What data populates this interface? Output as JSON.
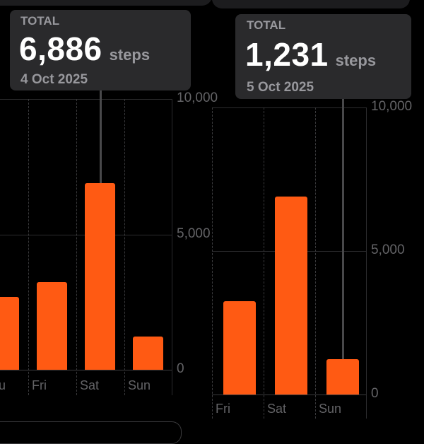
{
  "colors": {
    "bar": "#ff5a13",
    "background": "#000000",
    "tooltip": "#2a2a2c"
  },
  "left": {
    "tooltip": {
      "label": "TOTAL",
      "value": "6,886",
      "unit": "steps",
      "date": "4 Oct 2025"
    },
    "y_ticks": [
      "10,000",
      "5,000",
      "0"
    ],
    "x_labels": [
      "Thu",
      "Fri",
      "Sat",
      "Sun"
    ],
    "selected": "Sat"
  },
  "right": {
    "tooltip": {
      "label": "TOTAL",
      "value": "1,231",
      "unit": "steps",
      "date": "5 Oct 2025"
    },
    "y_ticks": [
      "10,000",
      "5,000",
      "0"
    ],
    "x_labels": [
      "Fri",
      "Sat",
      "Sun"
    ],
    "selected": "Sun"
  },
  "chart_data": [
    {
      "type": "bar",
      "categories": [
        "Thu",
        "Fri",
        "Sat",
        "Sun"
      ],
      "values": [
        2700,
        3250,
        6886,
        1231
      ],
      "ylim": [
        0,
        10000
      ],
      "y_ticks": [
        0,
        5000,
        10000
      ],
      "grid": true
    },
    {
      "type": "bar",
      "categories": [
        "Fri",
        "Sat",
        "Sun"
      ],
      "values": [
        3250,
        6886,
        1231
      ],
      "ylim": [
        0,
        10000
      ],
      "y_ticks": [
        0,
        5000,
        10000
      ],
      "grid": true
    }
  ]
}
